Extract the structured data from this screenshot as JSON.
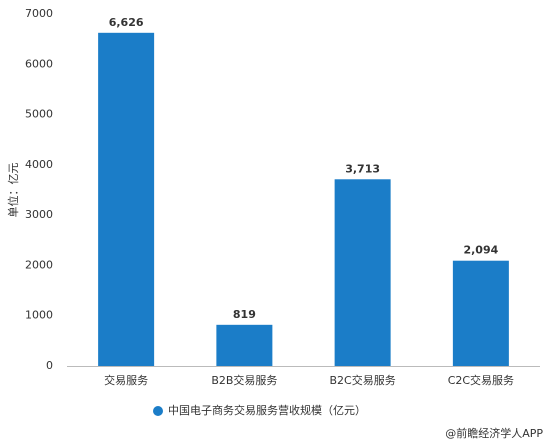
{
  "chart_data": {
    "type": "bar",
    "y_label": "单位：亿元",
    "categories": [
      "交易服务",
      "B2B交易服务",
      "B2C交易服务",
      "C2C交易服务"
    ],
    "series": [
      {
        "name": "中国电子商务交易服务营收规模（亿元）",
        "color": "#1b7dc8",
        "values": [
          6626,
          819,
          3713,
          2094
        ],
        "value_labels": [
          "6,626",
          "819",
          "3,713",
          "2,094"
        ]
      }
    ],
    "ylim": [
      0,
      7000
    ],
    "yticks": [
      0,
      1000,
      2000,
      3000,
      4000,
      5000,
      6000,
      7000
    ],
    "grid": false,
    "legend": "bottom",
    "annotation": "@前瞻经济学人APP"
  }
}
